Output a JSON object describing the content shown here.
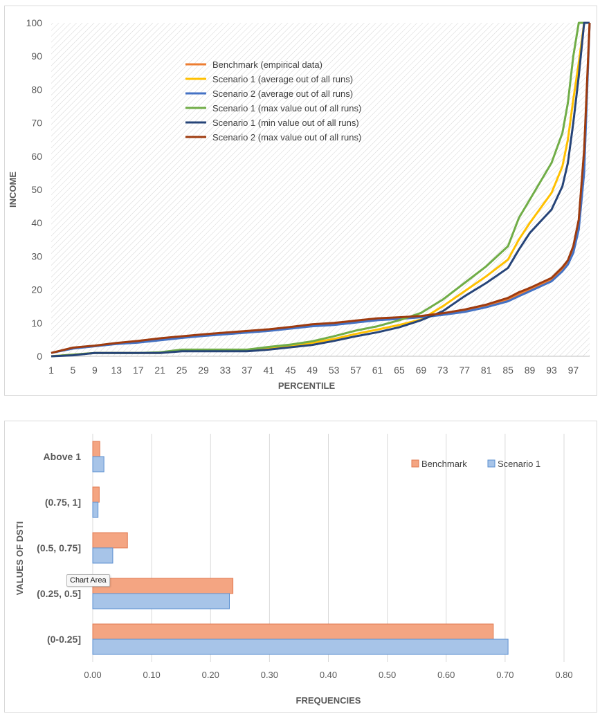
{
  "chart_data": [
    {
      "type": "line",
      "title": "",
      "xlabel": "PERCENTILE",
      "ylabel": "INCOME",
      "ylim": [
        0,
        100
      ],
      "yticks": [
        0,
        10,
        20,
        30,
        40,
        50,
        60,
        70,
        80,
        90,
        100
      ],
      "xticks": [
        1,
        5,
        9,
        13,
        17,
        21,
        25,
        29,
        33,
        37,
        41,
        45,
        49,
        53,
        57,
        61,
        65,
        69,
        73,
        77,
        81,
        85,
        89,
        93,
        97
      ],
      "x": [
        1,
        5,
        9,
        13,
        17,
        21,
        25,
        29,
        33,
        37,
        41,
        45,
        49,
        53,
        57,
        61,
        65,
        69,
        73,
        77,
        81,
        85,
        87,
        89,
        93,
        95,
        96,
        97,
        98,
        99,
        100
      ],
      "grid": "hatched",
      "legend_position": "top-left",
      "series": [
        {
          "name": "Benchmark (empirical data)",
          "color": "#ED7D31",
          "values": [
            1,
            2.5,
            3,
            3.8,
            4.3,
            5,
            5.7,
            6.3,
            6.8,
            7.3,
            7.8,
            8.5,
            9.2,
            9.6,
            10.3,
            11,
            11.4,
            11.9,
            12.6,
            13.5,
            15,
            17,
            18.5,
            20,
            23,
            26,
            28,
            32,
            40,
            60,
            100
          ]
        },
        {
          "name": "Scenario 1 (average out of all runs)",
          "color": "#FFC000",
          "values": [
            0,
            0.5,
            1,
            1,
            1,
            1,
            1.7,
            1.8,
            1.8,
            1.8,
            2.4,
            3,
            4,
            5.2,
            6.7,
            8,
            9.4,
            11,
            15,
            19.5,
            24,
            29,
            35,
            40,
            49,
            57,
            65,
            77,
            88,
            100,
            100
          ]
        },
        {
          "name": "Scenario 2  (average out of all runs)",
          "color": "#4472C4",
          "values": [
            1,
            2.3,
            3,
            3.7,
            4.1,
            4.8,
            5.5,
            6.1,
            6.6,
            7.1,
            7.6,
            8.3,
            9,
            9.4,
            10.1,
            10.8,
            11.2,
            11.7,
            12.4,
            13.3,
            14.7,
            16.5,
            18,
            19.5,
            22.5,
            25.5,
            27.5,
            31,
            38,
            55,
            100
          ]
        },
        {
          "name": "Scenario 1 (max value out of all runs)",
          "color": "#70AD47",
          "values": [
            0,
            0.5,
            1,
            1,
            1,
            1.2,
            2,
            2,
            2,
            2,
            2.8,
            3.5,
            4.5,
            6,
            7.7,
            9,
            10.8,
            13,
            17,
            22,
            27,
            33,
            41.5,
            47,
            58,
            67,
            76,
            90,
            100,
            100,
            100
          ]
        },
        {
          "name": "Scenario 1 (min value out of all runs)",
          "color": "#264478",
          "values": [
            0,
            0.3,
            1,
            1,
            1,
            1,
            1.5,
            1.5,
            1.5,
            1.5,
            2,
            2.7,
            3.4,
            4.6,
            6,
            7.2,
            8.7,
            10.8,
            13.5,
            18,
            22,
            26.5,
            32,
            37,
            44,
            51,
            58,
            70,
            84,
            100,
            100
          ]
        },
        {
          "name": "Scenario 2 (max value out of all runs)",
          "color": "#9E3B0F",
          "values": [
            1,
            2.6,
            3.2,
            4,
            4.6,
            5.4,
            6,
            6.6,
            7.1,
            7.6,
            8.1,
            8.8,
            9.6,
            10,
            10.7,
            11.4,
            11.7,
            12.1,
            12.9,
            14,
            15.5,
            17.5,
            19.2,
            20.5,
            23.5,
            26.7,
            28.8,
            33,
            41,
            62,
            100
          ]
        }
      ]
    },
    {
      "type": "bar",
      "orientation": "horizontal",
      "title": "",
      "xlabel": "FREQUENCIES",
      "ylabel": "VALUES OF DSTI",
      "xlim": [
        0,
        0.8
      ],
      "xticks": [
        "0.00",
        "0.10",
        "0.20",
        "0.30",
        "0.40",
        "0.50",
        "0.60",
        "0.70",
        "0.80"
      ],
      "categories": [
        "(0-0.25]",
        "(0.25, 0.5]",
        "(0.5, 0.75]",
        "(0.75, 1]",
        "Above 1"
      ],
      "legend_position": "top-right",
      "series": [
        {
          "name": "Benchmark",
          "color": "#F4A582",
          "values": [
            0.68,
            0.238,
            0.059,
            0.011,
            0.012
          ]
        },
        {
          "name": "Scenario 1",
          "color": "#A7C4E8",
          "values": [
            0.705,
            0.232,
            0.034,
            0.009,
            0.019
          ]
        }
      ]
    }
  ],
  "ui": {
    "tooltip": "Chart Area"
  }
}
